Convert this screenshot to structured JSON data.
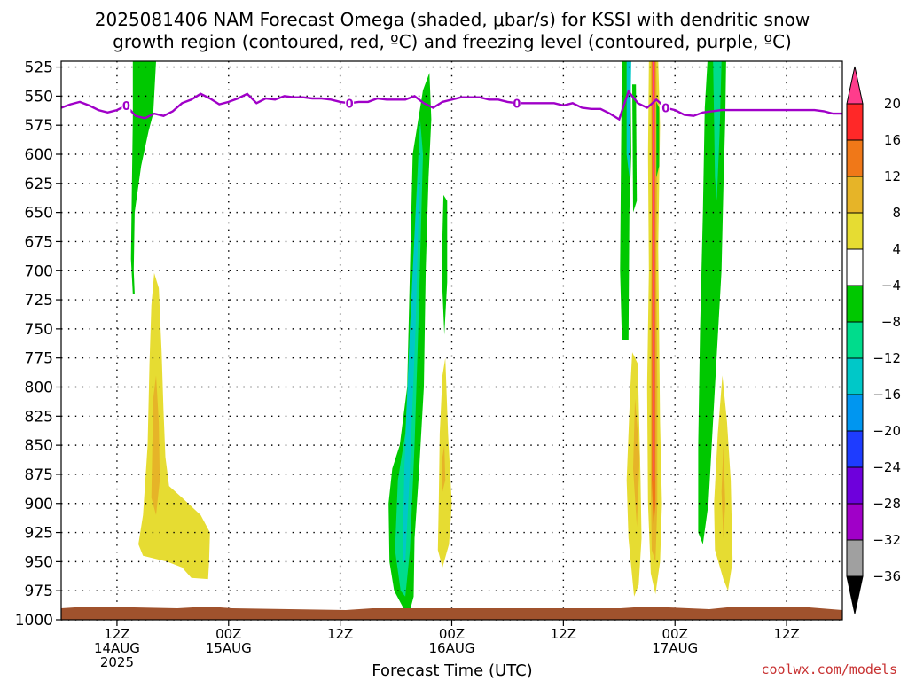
{
  "title_line1": "2025081406 NAM Forecast Omega (shaded, μbar/s) for KSSI with dendritic snow",
  "title_line2": "growth region (contoured, red, ºC) and freezing level (contoured, purple, ºC)",
  "credit": "coolwx.com/models",
  "chart_data": {
    "type": "heatmap",
    "xlabel": "Forecast Time (UTC)",
    "ylabel": "",
    "y_ticks": [
      "525",
      "550",
      "575",
      "600",
      "625",
      "650",
      "675",
      "700",
      "725",
      "750",
      "775",
      "800",
      "825",
      "850",
      "875",
      "900",
      "925",
      "950",
      "975",
      "1000"
    ],
    "ylim": [
      1000,
      520
    ],
    "xlim_hours_from_start": [
      0,
      84
    ],
    "x_ticks": [
      {
        "hour": 6,
        "line1": "12Z",
        "line2": "14AUG",
        "line3": "2025"
      },
      {
        "hour": 18,
        "line1": "00Z",
        "line2": "15AUG",
        "line3": ""
      },
      {
        "hour": 30,
        "line1": "12Z",
        "line2": "",
        "line3": ""
      },
      {
        "hour": 42,
        "line1": "00Z",
        "line2": "16AUG",
        "line3": ""
      },
      {
        "hour": 54,
        "line1": "12Z",
        "line2": "",
        "line3": ""
      },
      {
        "hour": 66,
        "line1": "00Z",
        "line2": "17AUG",
        "line3": ""
      },
      {
        "hour": 78,
        "line1": "12Z",
        "line2": "",
        "line3": ""
      }
    ],
    "grid": true,
    "colorbar": {
      "labels": [
        "20",
        "16",
        "12",
        "8",
        "4",
        "−4",
        "−8",
        "−12",
        "−16",
        "−20",
        "−24",
        "−28",
        "−32",
        "−36"
      ],
      "colors": [
        "#ff3c8c",
        "#ff2828",
        "#f07818",
        "#e6b428",
        "#e6dc32",
        "#ffffff",
        "#00c800",
        "#00dc8c",
        "#00c8c8",
        "#0096f0",
        "#1e3cff",
        "#6e00dc",
        "#a000c8",
        "#a0a0a0",
        "#000000"
      ]
    },
    "freezing_level": {
      "color": "#a000c8",
      "label": "0",
      "x": [
        0,
        1,
        2,
        3,
        4,
        5,
        6,
        7,
        8,
        9,
        10,
        11,
        12,
        13,
        14,
        15,
        16,
        17,
        18,
        19,
        20,
        21,
        22,
        23,
        24,
        25,
        26,
        27,
        28,
        29,
        30,
        31,
        32,
        33,
        34,
        35,
        36,
        37,
        38,
        39,
        40,
        41,
        42,
        43,
        44,
        45,
        46,
        47,
        48,
        49,
        50,
        51,
        52,
        53,
        54,
        55,
        56,
        57,
        58,
        59,
        60,
        61,
        62,
        63,
        64,
        65,
        66,
        67,
        68,
        69,
        70,
        71,
        72,
        73,
        74,
        75,
        76,
        77,
        78,
        79,
        80,
        81,
        82,
        83,
        84
      ],
      "y": [
        560,
        557,
        555,
        558,
        562,
        564,
        562,
        558,
        567,
        569,
        565,
        567,
        563,
        556,
        553,
        548,
        552,
        557,
        555,
        552,
        548,
        556,
        552,
        553,
        550,
        551,
        551,
        552,
        552,
        553,
        555,
        556,
        555,
        555,
        552,
        553,
        553,
        553,
        550,
        556,
        560,
        555,
        553,
        551,
        551,
        551,
        553,
        553,
        555,
        556,
        556,
        556,
        556,
        556,
        558,
        556,
        560,
        561,
        561,
        565,
        570,
        546,
        556,
        560,
        553,
        560,
        562,
        566,
        567,
        564,
        563,
        562,
        562,
        562,
        562,
        562,
        562,
        562,
        562,
        562,
        562,
        562,
        563,
        565,
        565
      ]
    },
    "shaded_regions": [
      {
        "value": -6,
        "points": [
          [
            7.7,
            520
          ],
          [
            10.2,
            520
          ],
          [
            9.9,
            565
          ],
          [
            9.4,
            580
          ],
          [
            8.6,
            610
          ],
          [
            7.9,
            650
          ],
          [
            7.8,
            700
          ],
          [
            7.9,
            720
          ],
          [
            7.7,
            720
          ],
          [
            7.5,
            690
          ],
          [
            7.6,
            630
          ],
          [
            7.7,
            570
          ]
        ]
      },
      {
        "value": 5,
        "points": [
          [
            10.0,
            702
          ],
          [
            10.5,
            715
          ],
          [
            10.8,
            770
          ],
          [
            11.0,
            820
          ],
          [
            11.2,
            860
          ],
          [
            11.6,
            885
          ],
          [
            13.0,
            895
          ],
          [
            15.0,
            910
          ],
          [
            16.0,
            925
          ],
          [
            15.9,
            950
          ],
          [
            15.8,
            965
          ],
          [
            14.0,
            964
          ],
          [
            13.0,
            955
          ],
          [
            11.4,
            950
          ],
          [
            8.8,
            945
          ],
          [
            8.3,
            935
          ],
          [
            8.8,
            910
          ],
          [
            9.3,
            850
          ],
          [
            9.5,
            780
          ],
          [
            9.7,
            730
          ]
        ]
      },
      {
        "value": 9,
        "points": [
          [
            10.2,
            790
          ],
          [
            10.5,
            830
          ],
          [
            10.6,
            880
          ],
          [
            10.2,
            910
          ],
          [
            9.7,
            895
          ],
          [
            9.8,
            850
          ],
          [
            9.9,
            810
          ]
        ]
      },
      {
        "value": -6,
        "points": [
          [
            38.9,
            545
          ],
          [
            39.6,
            530
          ],
          [
            39.8,
            570
          ],
          [
            39.5,
            620
          ],
          [
            39.2,
            700
          ],
          [
            39.0,
            800
          ],
          [
            38.5,
            870
          ],
          [
            38.0,
            930
          ],
          [
            37.9,
            980
          ],
          [
            37.4,
            995
          ],
          [
            36.8,
            990
          ],
          [
            35.8,
            975
          ],
          [
            35.3,
            950
          ],
          [
            35.2,
            900
          ],
          [
            35.6,
            870
          ],
          [
            36.4,
            850
          ],
          [
            37.2,
            800
          ],
          [
            37.5,
            700
          ],
          [
            37.8,
            600
          ]
        ]
      },
      {
        "value": -10,
        "points": [
          [
            38.6,
            570
          ],
          [
            38.9,
            600
          ],
          [
            38.4,
            750
          ],
          [
            38.0,
            850
          ],
          [
            37.5,
            940
          ],
          [
            37.0,
            980
          ],
          [
            36.5,
            975
          ],
          [
            35.9,
            940
          ],
          [
            36.2,
            880
          ],
          [
            37.0,
            840
          ],
          [
            37.8,
            700
          ]
        ]
      },
      {
        "value": -14,
        "points": [
          [
            38.6,
            600
          ],
          [
            38.1,
            750
          ],
          [
            37.5,
            870
          ],
          [
            37.0,
            950
          ],
          [
            36.7,
            950
          ],
          [
            36.9,
            870
          ],
          [
            37.5,
            750
          ],
          [
            38.2,
            640
          ]
        ]
      },
      {
        "value": -6,
        "points": [
          [
            41.1,
            635
          ],
          [
            41.5,
            640
          ],
          [
            41.5,
            710
          ],
          [
            41.2,
            755
          ],
          [
            40.9,
            700
          ]
        ]
      },
      {
        "value": 5,
        "points": [
          [
            41.3,
            775
          ],
          [
            41.6,
            840
          ],
          [
            42.0,
            900
          ],
          [
            41.7,
            935
          ],
          [
            41.0,
            955
          ],
          [
            40.5,
            940
          ],
          [
            40.6,
            900
          ],
          [
            40.7,
            840
          ],
          [
            41.0,
            790
          ]
        ]
      },
      {
        "value": 9,
        "points": [
          [
            41.2,
            850
          ],
          [
            41.3,
            880
          ],
          [
            41.0,
            890
          ],
          [
            41.0,
            860
          ]
        ]
      },
      {
        "value": -6,
        "points": [
          [
            60.3,
            515
          ],
          [
            61.2,
            515
          ],
          [
            61.3,
            600
          ],
          [
            61.1,
            650
          ],
          [
            61.0,
            760
          ],
          [
            60.3,
            760
          ],
          [
            60.1,
            700
          ],
          [
            60.2,
            600
          ]
        ]
      },
      {
        "value": -14,
        "points": [
          [
            60.8,
            520
          ],
          [
            61.3,
            520
          ],
          [
            61.1,
            620
          ],
          [
            60.8,
            600
          ]
        ]
      },
      {
        "value": -6,
        "points": [
          [
            61.4,
            540
          ],
          [
            61.8,
            540
          ],
          [
            61.9,
            640
          ],
          [
            61.5,
            650
          ]
        ]
      },
      {
        "value": 5,
        "points": [
          [
            61.4,
            770
          ],
          [
            62.0,
            780
          ],
          [
            62.3,
            880
          ],
          [
            62.4,
            930
          ],
          [
            62.1,
            970
          ],
          [
            61.6,
            980
          ],
          [
            61.0,
            930
          ],
          [
            60.8,
            880
          ],
          [
            61.2,
            800
          ]
        ]
      },
      {
        "value": 9,
        "points": [
          [
            61.7,
            810
          ],
          [
            62.2,
            860
          ],
          [
            61.9,
            920
          ],
          [
            61.5,
            870
          ]
        ]
      },
      {
        "value": 5,
        "points": [
          [
            63.2,
            520
          ],
          [
            64.2,
            520
          ],
          [
            64.4,
            575
          ],
          [
            64.2,
            680
          ],
          [
            64.3,
            760
          ],
          [
            64.4,
            830
          ],
          [
            64.6,
            900
          ],
          [
            64.4,
            950
          ],
          [
            63.9,
            978
          ],
          [
            63.4,
            960
          ],
          [
            63.1,
            900
          ],
          [
            63.0,
            800
          ],
          [
            63.2,
            700
          ],
          [
            63.1,
            600
          ]
        ]
      },
      {
        "value": 9,
        "points": [
          [
            63.4,
            520
          ],
          [
            64.0,
            520
          ],
          [
            64.1,
            600
          ],
          [
            64.0,
            700
          ],
          [
            64.1,
            800
          ],
          [
            64.1,
            900
          ],
          [
            63.9,
            950
          ],
          [
            63.5,
            940
          ],
          [
            63.4,
            880
          ],
          [
            63.4,
            750
          ],
          [
            63.5,
            650
          ]
        ]
      },
      {
        "value": 14,
        "points": [
          [
            63.5,
            520
          ],
          [
            63.9,
            520
          ],
          [
            63.9,
            700
          ],
          [
            63.9,
            900
          ],
          [
            63.7,
            920
          ],
          [
            63.5,
            880
          ],
          [
            63.5,
            700
          ]
        ]
      },
      {
        "value": 22,
        "points": [
          [
            63.6,
            520
          ],
          [
            63.8,
            520
          ],
          [
            63.8,
            880
          ],
          [
            63.65,
            880
          ]
        ]
      },
      {
        "value": -6,
        "points": [
          [
            64.0,
            555
          ],
          [
            64.3,
            560
          ],
          [
            64.3,
            610
          ],
          [
            64.0,
            620
          ]
        ]
      },
      {
        "value": -6,
        "points": [
          [
            69.5,
            520
          ],
          [
            71.5,
            520
          ],
          [
            71.4,
            570
          ],
          [
            71.2,
            630
          ],
          [
            71.0,
            700
          ],
          [
            70.3,
            800
          ],
          [
            69.6,
            900
          ],
          [
            69.0,
            935
          ],
          [
            68.5,
            925
          ],
          [
            68.5,
            850
          ],
          [
            68.7,
            750
          ],
          [
            69.0,
            650
          ],
          [
            69.2,
            560
          ]
        ]
      },
      {
        "value": -10,
        "points": [
          [
            70.1,
            520
          ],
          [
            71.0,
            520
          ],
          [
            70.8,
            580
          ],
          [
            70.5,
            640
          ],
          [
            70.3,
            620
          ],
          [
            70.2,
            570
          ]
        ]
      },
      {
        "value": -6,
        "points": [
          [
            70.7,
            620
          ],
          [
            71.0,
            625
          ],
          [
            70.9,
            660
          ],
          [
            70.7,
            650
          ]
        ]
      },
      {
        "value": 5,
        "points": [
          [
            71.1,
            790
          ],
          [
            71.6,
            830
          ],
          [
            72.0,
            880
          ],
          [
            72.2,
            950
          ],
          [
            71.7,
            975
          ],
          [
            71.2,
            965
          ],
          [
            70.3,
            940
          ],
          [
            70.2,
            900
          ],
          [
            70.6,
            840
          ]
        ]
      },
      {
        "value": 9,
        "points": [
          [
            71.2,
            850
          ],
          [
            71.4,
            900
          ],
          [
            71.2,
            930
          ],
          [
            71.0,
            890
          ]
        ]
      }
    ]
  }
}
